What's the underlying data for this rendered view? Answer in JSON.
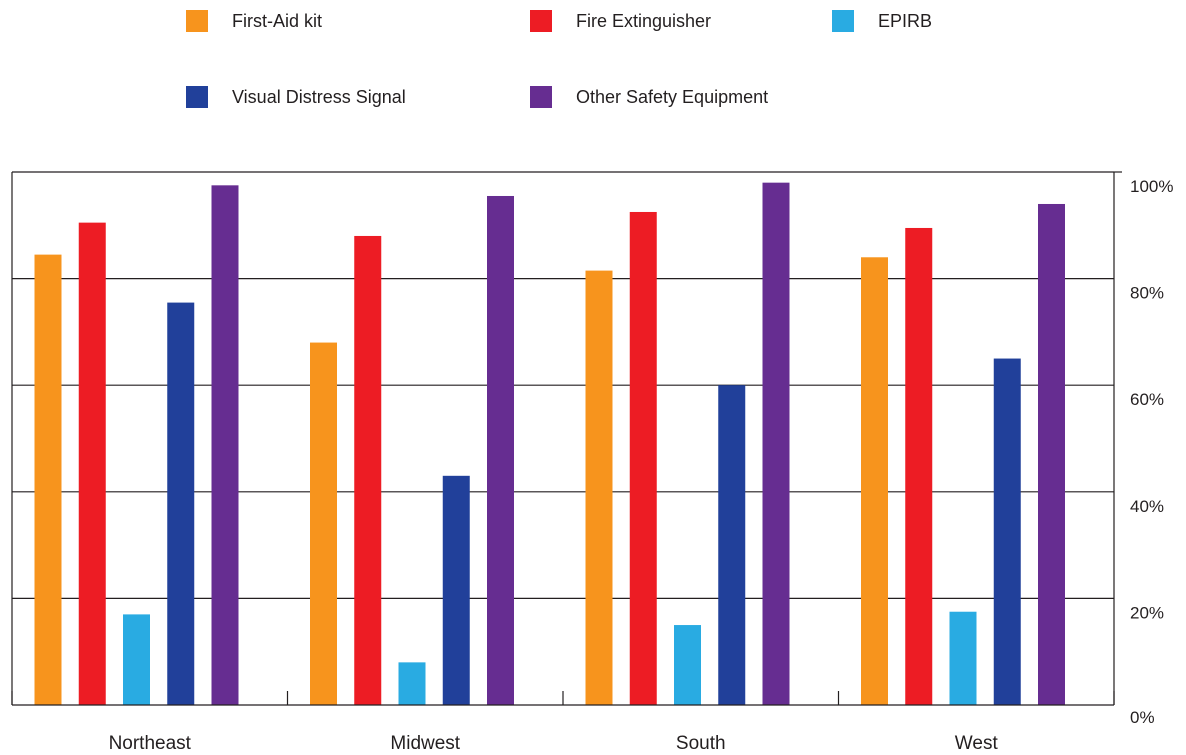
{
  "chart_data": {
    "type": "bar",
    "categories": [
      "Northeast",
      "Midwest",
      "South",
      "West"
    ],
    "series": [
      {
        "name": "First-Aid kit",
        "color": "#f7941d",
        "values": [
          84.5,
          68,
          81.5,
          84
        ]
      },
      {
        "name": "Fire Extinguisher",
        "color": "#ed1c24",
        "values": [
          90.5,
          88,
          92.5,
          89.5
        ]
      },
      {
        "name": "EPIRB",
        "color": "#29abe2",
        "values": [
          17,
          8,
          15,
          17.5
        ]
      },
      {
        "name": "Visual Distress Signal",
        "color": "#21409a",
        "values": [
          75.5,
          43,
          60,
          65
        ]
      },
      {
        "name": "Other Safety Equipment",
        "color": "#662d91",
        "values": [
          97.5,
          95.5,
          98,
          94
        ]
      }
    ],
    "yticks": [
      "0%",
      "20%",
      "40%",
      "60%",
      "80%",
      "100%"
    ],
    "ylim": [
      0,
      100
    ],
    "grid": true,
    "legend_position": "top",
    "y_axis_side": "right"
  }
}
